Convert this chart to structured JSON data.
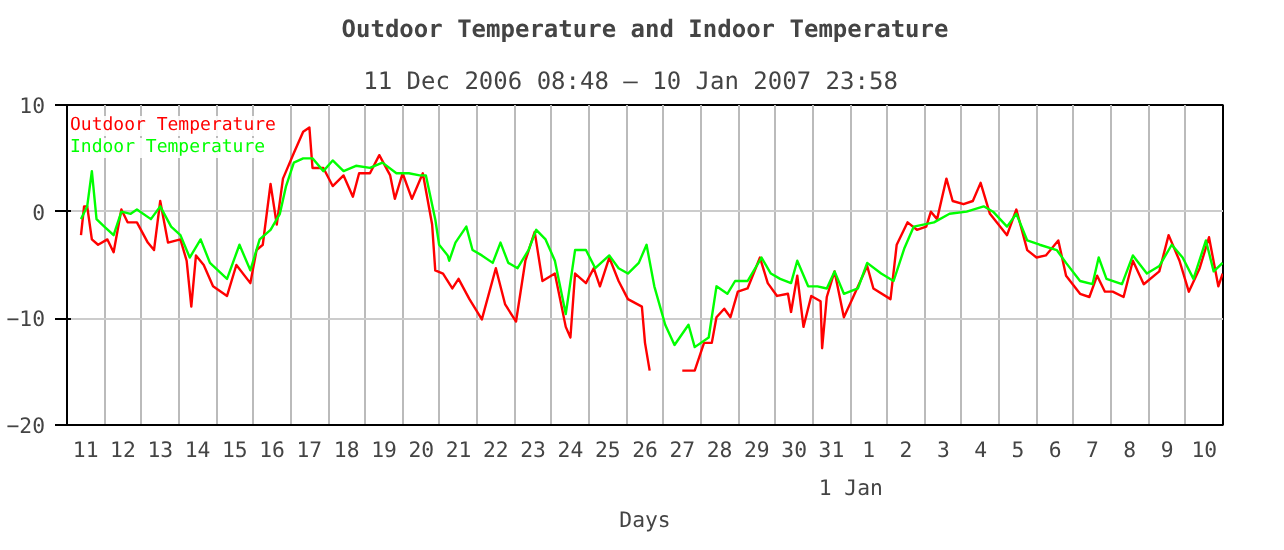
{
  "chart_data": {
    "type": "line",
    "title": "Outdoor Temperature and Indoor Temperature",
    "subtitle": "11 Dec 2006 08:48  –  10 Jan 2007 23:58",
    "xlabel": "Days",
    "xlim": [
      "2006-12-11T00:00",
      "2007-01-11T00:00"
    ],
    "ylim": [
      -20,
      10
    ],
    "yticks": [
      -20,
      -10,
      0,
      10
    ],
    "xticks": [
      {
        "value": "2006-12-11T12:00",
        "label": "11"
      },
      {
        "value": "2006-12-12T12:00",
        "label": "12"
      },
      {
        "value": "2006-12-13T12:00",
        "label": "13"
      },
      {
        "value": "2006-12-14T12:00",
        "label": "14"
      },
      {
        "value": "2006-12-15T12:00",
        "label": "15"
      },
      {
        "value": "2006-12-16T12:00",
        "label": "16"
      },
      {
        "value": "2006-12-17T12:00",
        "label": "17"
      },
      {
        "value": "2006-12-18T12:00",
        "label": "18"
      },
      {
        "value": "2006-12-19T12:00",
        "label": "19"
      },
      {
        "value": "2006-12-20T12:00",
        "label": "20"
      },
      {
        "value": "2006-12-21T12:00",
        "label": "21"
      },
      {
        "value": "2006-12-22T12:00",
        "label": "22"
      },
      {
        "value": "2006-12-23T12:00",
        "label": "23"
      },
      {
        "value": "2006-12-24T12:00",
        "label": "24"
      },
      {
        "value": "2006-12-25T12:00",
        "label": "25"
      },
      {
        "value": "2006-12-26T12:00",
        "label": "26"
      },
      {
        "value": "2006-12-27T12:00",
        "label": "27"
      },
      {
        "value": "2006-12-28T12:00",
        "label": "28"
      },
      {
        "value": "2006-12-29T12:00",
        "label": "29"
      },
      {
        "value": "2006-12-30T12:00",
        "label": "30"
      },
      {
        "value": "2006-12-31T12:00",
        "label": "31"
      },
      {
        "value": "2007-01-01T12:00",
        "label": "1"
      },
      {
        "value": "2007-01-02T12:00",
        "label": "2"
      },
      {
        "value": "2007-01-03T12:00",
        "label": "3"
      },
      {
        "value": "2007-01-04T12:00",
        "label": "4"
      },
      {
        "value": "2007-01-05T12:00",
        "label": "5"
      },
      {
        "value": "2007-01-06T12:00",
        "label": "6"
      },
      {
        "value": "2007-01-07T12:00",
        "label": "7"
      },
      {
        "value": "2007-01-08T12:00",
        "label": "8"
      },
      {
        "value": "2007-01-09T12:00",
        "label": "9"
      },
      {
        "value": "2007-01-10T12:00",
        "label": "10"
      },
      {
        "value": "2006-12-12T00:00",
        "label": null
      },
      {
        "value": "2006-12-13T00:00",
        "label": null
      },
      {
        "value": "2006-12-14T00:00",
        "label": null
      },
      {
        "value": "2006-12-15T00:00",
        "label": null
      },
      {
        "value": "2006-12-16T00:00",
        "label": null
      },
      {
        "value": "2006-12-17T00:00",
        "label": null
      },
      {
        "value": "2006-12-18T00:00",
        "label": null
      },
      {
        "value": "2006-12-19T00:00",
        "label": null
      },
      {
        "value": "2006-12-20T00:00",
        "label": null
      },
      {
        "value": "2006-12-21T00:00",
        "label": null
      },
      {
        "value": "2006-12-22T00:00",
        "label": null
      },
      {
        "value": "2006-12-23T00:00",
        "label": null
      },
      {
        "value": "2006-12-24T00:00",
        "label": null
      },
      {
        "value": "2006-12-25T00:00",
        "label": null
      },
      {
        "value": "2006-12-26T00:00",
        "label": null
      },
      {
        "value": "2006-12-27T00:00",
        "label": null
      },
      {
        "value": "2006-12-28T00:00",
        "label": null
      },
      {
        "value": "2006-12-29T00:00",
        "label": null
      },
      {
        "value": "2006-12-30T00:00",
        "label": null
      },
      {
        "value": "2006-12-31T00:00",
        "label": null
      },
      {
        "value": "2007-01-01T00:00",
        "label": null
      },
      {
        "value": "2007-01-02T00:00",
        "label": null
      },
      {
        "value": "2007-01-03T00:00",
        "label": null
      },
      {
        "value": "2007-01-04T00:00",
        "label": null
      },
      {
        "value": "2007-01-05T00:00",
        "label": null
      },
      {
        "value": "2007-01-06T00:00",
        "label": null
      },
      {
        "value": "2007-01-07T00:00",
        "label": null
      },
      {
        "value": "2007-01-08T00:00",
        "label": null
      },
      {
        "value": "2007-01-09T00:00",
        "label": null
      },
      {
        "value": "2007-01-10T00:00",
        "label": null
      }
    ],
    "annotations": [
      "1 Jan"
    ],
    "grid": true,
    "legend": "top left",
    "series": [
      {
        "name": "Outdoor Temperature",
        "color": "#ff0000",
        "x": [
          "2006-12-11T09:00",
          "2006-12-11T11:00",
          "2006-12-11T13:00",
          "2006-12-11T16:00",
          "2006-12-11T20:00",
          "2006-12-12T02:00",
          "2006-12-12T06:00",
          "2006-12-12T11:00",
          "2006-12-12T15:00",
          "2006-12-12T21:00",
          "2006-12-13T04:00",
          "2006-12-13T08:00",
          "2006-12-13T12:00",
          "2006-12-13T17:00",
          "2006-12-14T01:00",
          "2006-12-14T05:00",
          "2006-12-14T08:00",
          "2006-12-14T11:00",
          "2006-12-14T16:00",
          "2006-12-14T22:00",
          "2006-12-15T07:00",
          "2006-12-15T13:00",
          "2006-12-15T22:00",
          "2006-12-16T02:00",
          "2006-12-16T06:00",
          "2006-12-16T11:00",
          "2006-12-16T15:00",
          "2006-12-16T19:00",
          "2006-12-17T02:00",
          "2006-12-17T08:00",
          "2006-12-17T12:00",
          "2006-12-17T14:00",
          "2006-12-17T21:00",
          "2006-12-18T03:00",
          "2006-12-18T10:00",
          "2006-12-18T16:00",
          "2006-12-18T20:00",
          "2006-12-19T03:00",
          "2006-12-19T09:00",
          "2006-12-19T16:00",
          "2006-12-19T19:00",
          "2006-12-20T00:00",
          "2006-12-20T06:00",
          "2006-12-20T13:00",
          "2006-12-20T19:00",
          "2006-12-20T21:00",
          "2006-12-21T02:00",
          "2006-12-21T08:00",
          "2006-12-21T12:00",
          "2006-12-21T19:00",
          "2006-12-22T03:00",
          "2006-12-22T12:00",
          "2006-12-22T18:00",
          "2006-12-23T01:00",
          "2006-12-23T07:00",
          "2006-12-23T13:00",
          "2006-12-23T18:00",
          "2006-12-24T02:00",
          "2006-12-24T09:00",
          "2006-12-24T12:00",
          "2006-12-24T15:00",
          "2006-12-24T22:00",
          "2006-12-25T03:00",
          "2006-12-25T07:00",
          "2006-12-25T13:00",
          "2006-12-25T19:00",
          "2006-12-26T01:00",
          "2006-12-26T10:00",
          "2006-12-26T12:00",
          "2006-12-26T15:00",
          "2006-12-27T00:00",
          "2006-12-27T12:00",
          "2006-12-27T20:00",
          "2006-12-28T02:00",
          "2006-12-28T07:00",
          "2006-12-28T10:00",
          "2006-12-28T15:00",
          "2006-12-28T19:00",
          "2006-12-28T23:45",
          "2006-12-29T06:00",
          "2006-12-29T14:00",
          "2006-12-29T19:00",
          "2006-12-30T01:00",
          "2006-12-30T08:00",
          "2006-12-30T10:00",
          "2006-12-30T14:00",
          "2006-12-30T18:00",
          "2006-12-30T23:00",
          "2006-12-31T05:00",
          "2006-12-31T06:00",
          "2006-12-31T09:00",
          "2006-12-31T14:00",
          "2006-12-31T20:00",
          "2007-01-01T02:00",
          "2007-01-01T11:00",
          "2007-01-01T15:00",
          "2007-01-02T02:00",
          "2007-01-02T06:00",
          "2007-01-02T13:00",
          "2007-01-02T19:00",
          "2007-01-03T01:00",
          "2007-01-03T04:00",
          "2007-01-03T08:00",
          "2007-01-03T14:00",
          "2007-01-03T18:00",
          "2007-01-04T01:00",
          "2007-01-04T07:00",
          "2007-01-04T12:00",
          "2007-01-04T18:00",
          "2007-01-05T05:00",
          "2007-01-05T11:00",
          "2007-01-05T18:00",
          "2007-01-06T00:00",
          "2007-01-06T06:00",
          "2007-01-06T14:00",
          "2007-01-06T19:00",
          "2007-01-07T04:00",
          "2007-01-07T10:00",
          "2007-01-07T15:00",
          "2007-01-07T20:00",
          "2007-01-08T01:00",
          "2007-01-08T08:00",
          "2007-01-08T14:00",
          "2007-01-08T21:00",
          "2007-01-09T07:00",
          "2007-01-09T13:00",
          "2007-01-09T20:00",
          "2007-01-10T02:00",
          "2007-01-10T09:00",
          "2007-01-10T15:00",
          "2007-01-10T21:00",
          "2007-01-10T23:45"
        ],
        "values": [
          -2.2,
          0.5,
          0.5,
          -2.6,
          -3.1,
          -2.6,
          -3.8,
          0.2,
          -1.0,
          -1.0,
          -2.9,
          -3.6,
          1.0,
          -2.9,
          -2.6,
          -4.6,
          -8.9,
          -4.1,
          -5.0,
          -7.0,
          -7.9,
          -5.0,
          -6.7,
          -3.6,
          -3.1,
          2.6,
          -1.2,
          3.1,
          5.5,
          7.5,
          7.9,
          4.1,
          4.1,
          2.4,
          3.4,
          1.4,
          3.6,
          3.6,
          5.3,
          3.4,
          1.2,
          3.6,
          1.2,
          3.6,
          -1.2,
          -5.5,
          -5.8,
          -7.2,
          -6.3,
          -8.2,
          -10.1,
          -5.3,
          -8.7,
          -10.3,
          -4.6,
          -1.9,
          -6.5,
          -5.8,
          -10.8,
          -11.8,
          -5.8,
          -6.7,
          -5.3,
          -7.0,
          -4.3,
          -6.5,
          -8.2,
          -8.9,
          -12.3,
          -14.9,
          null,
          -14.9,
          -14.9,
          -12.3,
          -12.3,
          -9.9,
          -9.1,
          -9.9,
          -7.5,
          -7.2,
          -4.3,
          -6.7,
          -7.9,
          -7.7,
          -9.4,
          -6.0,
          -10.8,
          -7.9,
          -8.4,
          -12.8,
          -8.0,
          -5.6,
          -9.9,
          -8.0,
          -5.1,
          -7.2,
          -8.2,
          -3.1,
          -1.0,
          -1.7,
          -1.4,
          0,
          -0.7,
          3.1,
          1.0,
          0.7,
          1.0,
          2.7,
          -0.2,
          -2.2,
          0.2,
          -3.6,
          -4.3,
          -4.1,
          -2.7,
          -6.0,
          -7.7,
          -8.0,
          -6.0,
          -7.5,
          -7.5,
          -8.0,
          -4.6,
          -6.8,
          -5.6,
          -2.2,
          -4.6,
          -7.5,
          -5.3,
          -2.4,
          -7.0,
          -5.8
        ]
      },
      {
        "name": "Indoor Temperature",
        "color": "#00ff00",
        "x": [
          "2006-12-11T09:00",
          "2006-12-11T13:00",
          "2006-12-11T16:00",
          "2006-12-11T19:00",
          "2006-12-12T00:00",
          "2006-12-12T06:00",
          "2006-12-12T11:00",
          "2006-12-12T17:00",
          "2006-12-12T21:00",
          "2006-12-13T06:00",
          "2006-12-13T12:00",
          "2006-12-13T19:00",
          "2006-12-14T01:00",
          "2006-12-14T07:00",
          "2006-12-14T14:00",
          "2006-12-14T20:00",
          "2006-12-15T07:00",
          "2006-12-15T15:00",
          "2006-12-15T22:00",
          "2006-12-16T04:00",
          "2006-12-16T11:00",
          "2006-12-16T17:00",
          "2006-12-16T21:00",
          "2006-12-17T02:00",
          "2006-12-17T08:00",
          "2006-12-17T14:00",
          "2006-12-17T21:00",
          "2006-12-18T03:00",
          "2006-12-18T10:00",
          "2006-12-18T18:00",
          "2006-12-19T03:00",
          "2006-12-19T11:00",
          "2006-12-19T20:00",
          "2006-12-20T04:00",
          "2006-12-20T11:00",
          "2006-12-20T15:00",
          "2006-12-20T21:00",
          "2006-12-20T23:30",
          "2006-12-21T05:00",
          "2006-12-21T06:00",
          "2006-12-21T10:00",
          "2006-12-21T17:00",
          "2006-12-21T21:00",
          "2006-12-22T03:00",
          "2006-12-22T10:00",
          "2006-12-22T15:00",
          "2006-12-22T20:00",
          "2006-12-23T02:00",
          "2006-12-23T09:00",
          "2006-12-23T14:00",
          "2006-12-23T20:00",
          "2006-12-24T02:00",
          "2006-12-24T09:00",
          "2006-12-24T15:00",
          "2006-12-24T22:00",
          "2006-12-25T04:00",
          "2006-12-25T13:00",
          "2006-12-25T19:00",
          "2006-12-26T01:00",
          "2006-12-26T08:00",
          "2006-12-26T13:00",
          "2006-12-26T18:00",
          "2006-12-27T01:00",
          "2006-12-27T07:00",
          "2006-12-27T16:00",
          "2006-12-27T20:00",
          "2006-12-28T05:00",
          "2006-12-28T10:00",
          "2006-12-28T17:00",
          "2006-12-28T22:00",
          "2006-12-29T06:00",
          "2006-12-29T15:00",
          "2006-12-29T21:00",
          "2006-12-30T03:00",
          "2006-12-30T10:00",
          "2006-12-30T14:00",
          "2006-12-30T21:00",
          "2006-12-31T03:00",
          "2006-12-31T09:00",
          "2006-12-31T14:00",
          "2006-12-31T20:00",
          "2007-01-01T05:00",
          "2007-01-01T11:00",
          "2007-01-01T20:00",
          "2007-01-02T04:00",
          "2007-01-02T11:00",
          "2007-01-02T17:00",
          "2007-01-03T06:00",
          "2007-01-03T16:00",
          "2007-01-04T03:00",
          "2007-01-04T14:00",
          "2007-01-04T20:00",
          "2007-01-05T05:00",
          "2007-01-05T11:00",
          "2007-01-05T18:00",
          "2007-01-06T02:00",
          "2007-01-06T13:00",
          "2007-01-06T19:00",
          "2007-01-07T04:00",
          "2007-01-07T12:00",
          "2007-01-07T16:00",
          "2007-01-07T21:00",
          "2007-01-08T07:00",
          "2007-01-08T14:00",
          "2007-01-08T23:00",
          "2007-01-09T07:00",
          "2007-01-09T15:00",
          "2007-01-09T22:00",
          "2007-01-10T05:00",
          "2007-01-10T13:00",
          "2007-01-10T18:00",
          "2007-01-10T23:45"
        ],
        "values": [
          -0.7,
          0.5,
          3.8,
          -0.7,
          -1.4,
          -2.2,
          0,
          -0.2,
          0.2,
          -0.7,
          0.5,
          -1.4,
          -2.2,
          -4.3,
          -2.6,
          -4.8,
          -6.3,
          -3.1,
          -5.5,
          -2.6,
          -1.7,
          -0.2,
          2.4,
          4.6,
          5.0,
          5.0,
          3.8,
          4.8,
          3.8,
          4.3,
          4.1,
          4.6,
          3.6,
          3.6,
          3.4,
          3.4,
          -0.7,
          -3.1,
          -4.1,
          -4.6,
          -2.9,
          -1.4,
          -3.6,
          -4.1,
          -4.8,
          -2.9,
          -4.8,
          -5.3,
          -3.6,
          -1.7,
          -2.6,
          -4.6,
          -9.6,
          -3.6,
          -3.6,
          -5.3,
          -4.1,
          -5.3,
          -5.8,
          -4.8,
          -3.1,
          -7.0,
          -10.6,
          -12.5,
          -10.6,
          -12.7,
          -11.8,
          -7.0,
          -7.7,
          -6.5,
          -6.5,
          -4.3,
          -5.8,
          -6.3,
          -6.7,
          -4.6,
          -7.0,
          -7.0,
          -7.2,
          -5.6,
          -7.7,
          -7.2,
          -4.8,
          -5.8,
          -6.5,
          -3.4,
          -1.4,
          -1.0,
          -0.2,
          0,
          0.5,
          0,
          -1.4,
          -0.2,
          -2.7,
          -3.1,
          -3.6,
          -4.8,
          -6.5,
          -6.8,
          -4.3,
          -6.3,
          -6.8,
          -4.1,
          -5.8,
          -5.1,
          -3.1,
          -4.3,
          -6.3,
          -2.7,
          -5.6,
          -4.8
        ]
      }
    ]
  }
}
